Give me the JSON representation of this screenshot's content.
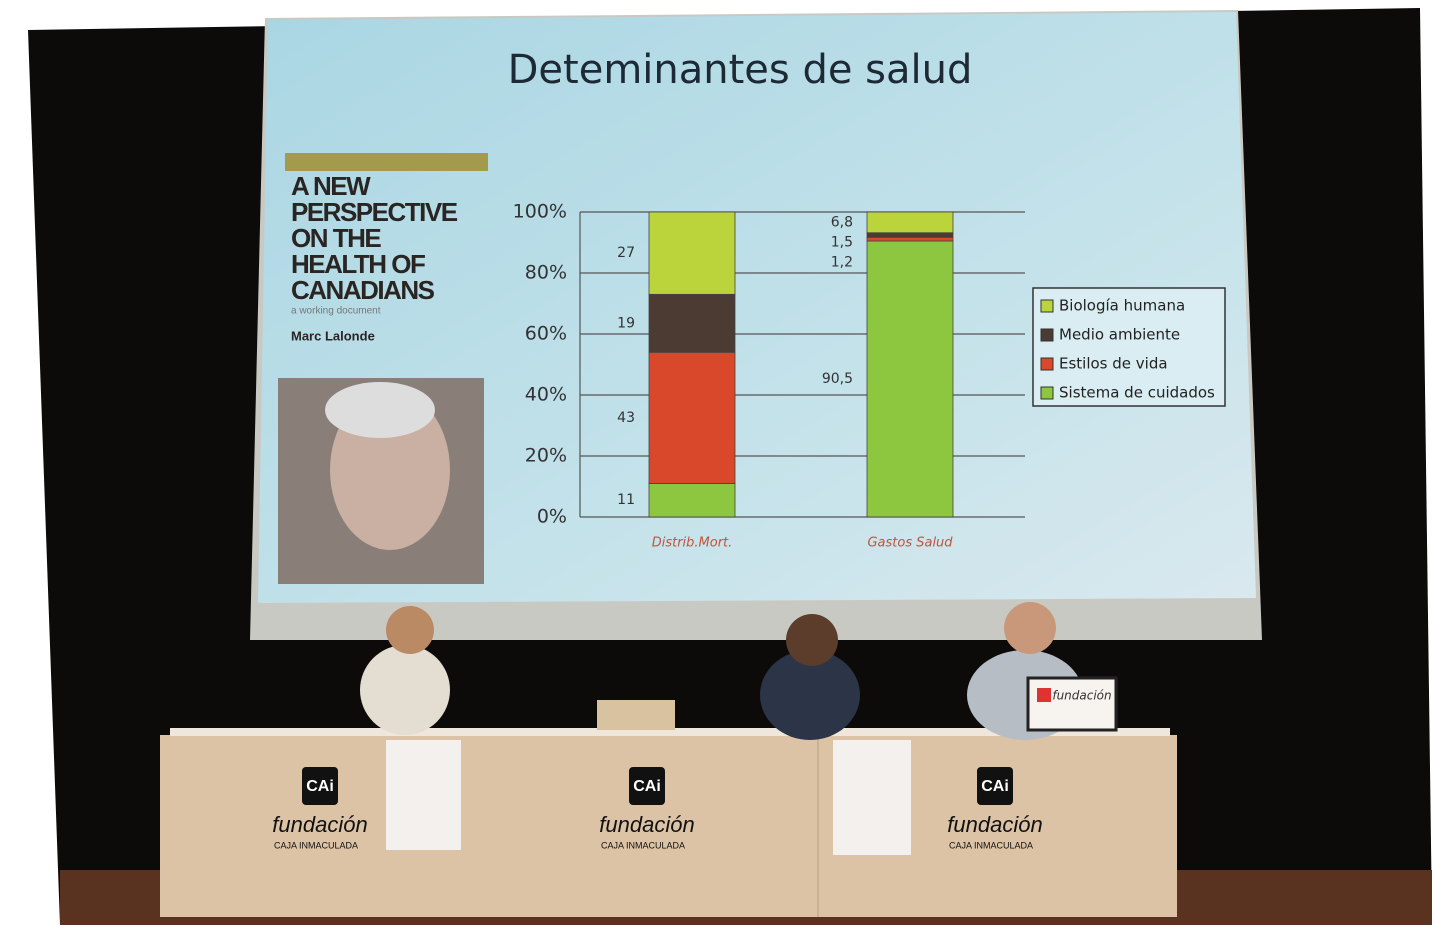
{
  "chart_data": {
    "type": "stacked-bar",
    "title": "Deteminantes de salud",
    "categories": [
      "Distrib.Mort.",
      "Gastos Salud"
    ],
    "series": [
      {
        "name": "Biología humana",
        "color": "#bcd43c",
        "values": [
          27,
          6.8
        ],
        "value_labels": [
          "27",
          "6,8"
        ]
      },
      {
        "name": "Medio ambiente",
        "color": "#4b3b32",
        "values": [
          19,
          1.5
        ],
        "value_labels": [
          "19",
          "1,5"
        ]
      },
      {
        "name": "Estilos de vida",
        "color": "#d9482b",
        "values": [
          43,
          1.2
        ],
        "value_labels": [
          "43",
          "1,2"
        ]
      },
      {
        "name": "Sistema de cuidados",
        "color": "#8dc63f",
        "values": [
          11,
          90.5
        ],
        "value_labels": [
          "11",
          "90,5"
        ]
      }
    ],
    "ylim": [
      0,
      100
    ],
    "yticks": [
      {
        "value": 0,
        "label": "0%"
      },
      {
        "value": 20,
        "label": "20%"
      },
      {
        "value": 40,
        "label": "40%"
      },
      {
        "value": 60,
        "label": "60%"
      },
      {
        "value": 80,
        "label": "80%"
      },
      {
        "value": 100,
        "label": "100%"
      }
    ],
    "grid": true,
    "legend": "right"
  },
  "scene": {
    "book": {
      "title_lines": [
        "A NEW",
        "PERSPECTIVE",
        "ON THE",
        "HEALTH OF",
        "CANADIANS"
      ],
      "subtitle": "a working document",
      "author": "Marc Lalonde"
    },
    "table_signs": [
      {
        "logo": "CAi",
        "name": "fundación",
        "sub": "CAJA INMACULADA"
      },
      {
        "logo": "CAi",
        "name": "fundación",
        "sub": "CAJA INMACULADA"
      },
      {
        "logo": "CAi",
        "name": "fundación",
        "sub": "CAJA INMACULADA"
      }
    ],
    "nameplate": "fundación"
  }
}
